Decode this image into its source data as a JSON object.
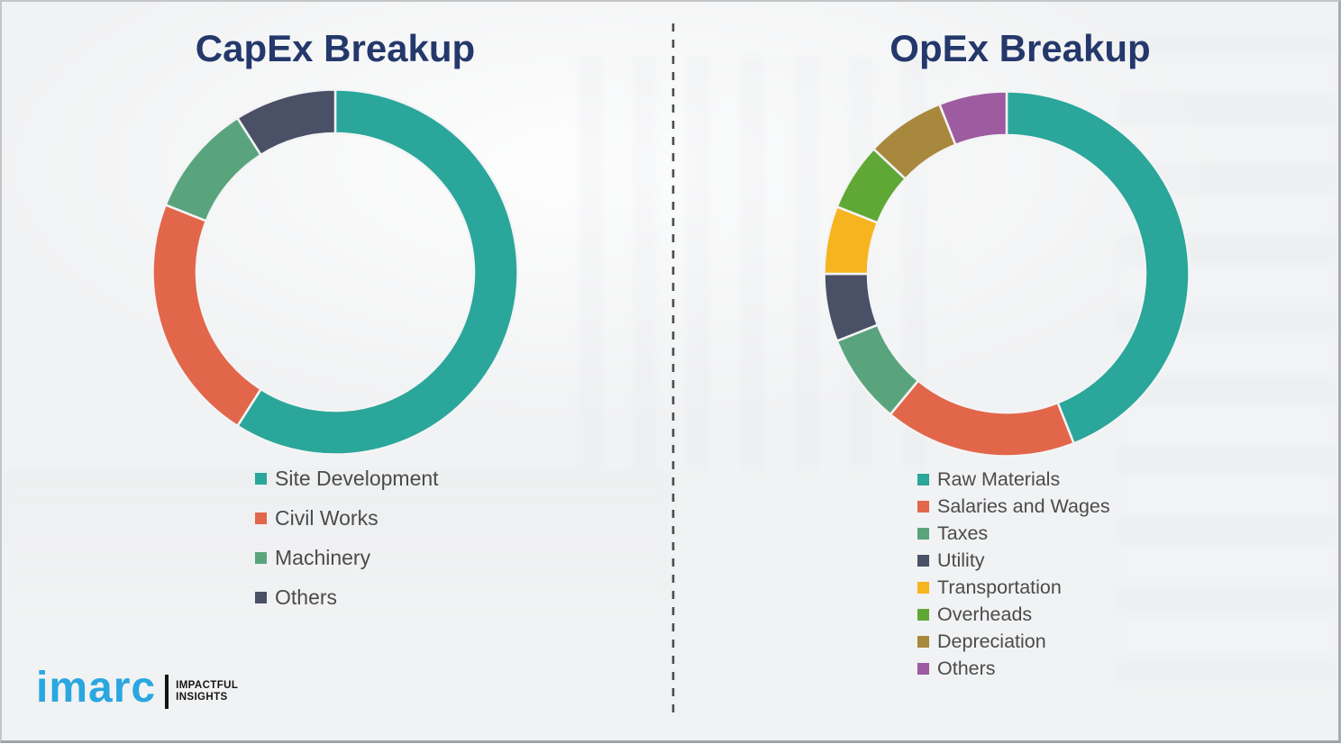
{
  "page": {
    "background_color": "#f1f2f3",
    "divider": {
      "style": "vertical-dashed",
      "color": "#4c4c4c"
    }
  },
  "chart_data": [
    {
      "type": "pie",
      "subtype": "donut",
      "title": "CapEx Breakup",
      "categories": [
        "Site Development",
        "Civil Works",
        "Machinery",
        "Others"
      ],
      "values": [
        59,
        22,
        10,
        9
      ],
      "unit": "% (estimated from arc angles; no data labels shown)",
      "colors": [
        "#2aa69a",
        "#e2664a",
        "#59a47d",
        "#4a5066"
      ],
      "start_angle_deg": 0,
      "direction": "clockwise",
      "legend_position": "below-left"
    },
    {
      "type": "pie",
      "subtype": "donut",
      "title": "OpEx Breakup",
      "categories": [
        "Raw Materials",
        "Salaries and Wages",
        "Taxes",
        "Utility",
        "Transportation",
        "Overheads",
        "Depreciation",
        "Others"
      ],
      "values": [
        44,
        17,
        8,
        6,
        6,
        6,
        7,
        6
      ],
      "unit": "% (estimated from arc angles; no data labels shown)",
      "colors": [
        "#2aa69a",
        "#e2664a",
        "#59a47d",
        "#4a5066",
        "#f6b41f",
        "#60a836",
        "#a8883c",
        "#9d5ba0"
      ],
      "start_angle_deg": 0,
      "direction": "clockwise",
      "legend_position": "below-left"
    }
  ],
  "logo": {
    "brand": "imarc",
    "tagline": [
      "IMPACTFUL",
      "INSIGHTS"
    ],
    "brand_color": "#2aa7e0"
  }
}
